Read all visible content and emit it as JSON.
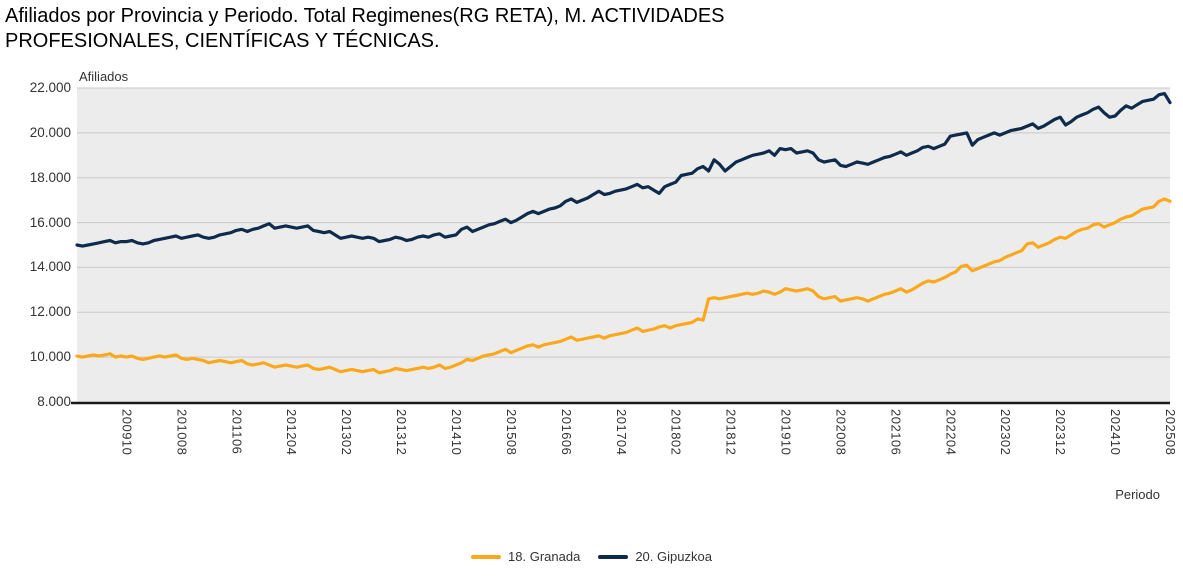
{
  "title": {
    "line1": "Afiliados por Provincia y Periodo. Total Regimenes(RG RETA), M. ACTIVIDADES",
    "line2": "PROFESIONALES, CIENTÍFICAS Y TÉCNICAS."
  },
  "chart_data": {
    "type": "line",
    "y_axis": {
      "title": "Afiliados",
      "min": 8000,
      "max": 22000,
      "tick_step": 2000,
      "tick_labels": [
        "22.000",
        "20.000",
        "18.000",
        "16.000",
        "14.000",
        "12.000",
        "10.000",
        "8.000"
      ]
    },
    "x_axis": {
      "title": "Periodo",
      "start_period": "200901",
      "end_period": "202508",
      "months_total": 200,
      "tick_month_indices": [
        9,
        19,
        29,
        39,
        49,
        59,
        69,
        79,
        89,
        99,
        109,
        119,
        129,
        139,
        149,
        159,
        169,
        179,
        189,
        199
      ],
      "tick_labels": [
        "200910",
        "201008",
        "201106",
        "201204",
        "201302",
        "201312",
        "201410",
        "201508",
        "201606",
        "201704",
        "201802",
        "201812",
        "201910",
        "202008",
        "202106",
        "202204",
        "202302",
        "202312",
        "202410",
        "202508"
      ]
    },
    "plot": {
      "background": "#ECECEC",
      "gridline_color": "#C9C9C9",
      "axis_line_color": "#1A1A1A"
    },
    "series": [
      {
        "name": "18. Granada",
        "color": "#FBA81C",
        "values": [
          10050,
          10000,
          10050,
          10100,
          10050,
          10100,
          10150,
          10000,
          10050,
          10000,
          10050,
          9950,
          9900,
          9950,
          10000,
          10050,
          10000,
          10050,
          10100,
          9950,
          9900,
          9950,
          9900,
          9850,
          9750,
          9800,
          9850,
          9800,
          9750,
          9800,
          9850,
          9700,
          9650,
          9700,
          9750,
          9650,
          9550,
          9600,
          9650,
          9600,
          9550,
          9600,
          9650,
          9500,
          9450,
          9500,
          9550,
          9450,
          9350,
          9400,
          9450,
          9400,
          9350,
          9400,
          9450,
          9300,
          9350,
          9400,
          9500,
          9450,
          9400,
          9450,
          9500,
          9550,
          9500,
          9550,
          9650,
          9500,
          9550,
          9650,
          9750,
          9900,
          9850,
          9950,
          10050,
          10100,
          10150,
          10250,
          10350,
          10200,
          10300,
          10400,
          10500,
          10550,
          10450,
          10550,
          10600,
          10650,
          10700,
          10800,
          10900,
          10750,
          10800,
          10850,
          10900,
          10950,
          10850,
          10950,
          11000,
          11050,
          11100,
          11200,
          11300,
          11150,
          11200,
          11250,
          11350,
          11400,
          11300,
          11400,
          11450,
          11500,
          11550,
          11700,
          11650,
          12600,
          12650,
          12600,
          12650,
          12700,
          12750,
          12800,
          12850,
          12800,
          12850,
          12950,
          12900,
          12800,
          12900,
          13050,
          13000,
          12950,
          13000,
          13050,
          12950,
          12700,
          12600,
          12650,
          12700,
          12500,
          12550,
          12600,
          12650,
          12600,
          12500,
          12600,
          12700,
          12800,
          12850,
          12950,
          13050,
          12900,
          13000,
          13150,
          13300,
          13400,
          13350,
          13450,
          13550,
          13700,
          13800,
          14050,
          14100,
          13850,
          13950,
          14050,
          14150,
          14250,
          14300,
          14450,
          14550,
          14650,
          14750,
          15050,
          15100,
          14900,
          15000,
          15100,
          15250,
          15350,
          15300,
          15450,
          15600,
          15700,
          15750,
          15900,
          15950,
          15800,
          15900,
          16000,
          16150,
          16250,
          16300,
          16450,
          16600,
          16650,
          16700,
          16950,
          17050,
          16950
        ]
      },
      {
        "name": "20. Gipuzkoa",
        "color": "#0E2B4C",
        "values": [
          15000,
          14950,
          15000,
          15050,
          15100,
          15150,
          15200,
          15100,
          15150,
          15150,
          15200,
          15100,
          15050,
          15100,
          15200,
          15250,
          15300,
          15350,
          15400,
          15300,
          15350,
          15400,
          15450,
          15350,
          15300,
          15350,
          15450,
          15500,
          15550,
          15650,
          15700,
          15600,
          15700,
          15750,
          15850,
          15950,
          15750,
          15800,
          15850,
          15800,
          15750,
          15800,
          15850,
          15650,
          15600,
          15550,
          15600,
          15450,
          15300,
          15350,
          15400,
          15350,
          15300,
          15350,
          15300,
          15150,
          15200,
          15250,
          15350,
          15300,
          15200,
          15250,
          15350,
          15400,
          15350,
          15450,
          15500,
          15350,
          15400,
          15450,
          15700,
          15800,
          15600,
          15700,
          15800,
          15900,
          15950,
          16050,
          16150,
          16000,
          16100,
          16250,
          16400,
          16500,
          16400,
          16500,
          16600,
          16650,
          16750,
          16950,
          17050,
          16900,
          17000,
          17100,
          17250,
          17400,
          17250,
          17300,
          17400,
          17450,
          17500,
          17600,
          17700,
          17550,
          17600,
          17450,
          17300,
          17600,
          17700,
          17800,
          18100,
          18150,
          18200,
          18400,
          18500,
          18300,
          18800,
          18600,
          18300,
          18500,
          18700,
          18800,
          18900,
          19000,
          19050,
          19100,
          19200,
          19000,
          19300,
          19250,
          19300,
          19100,
          19150,
          19200,
          19100,
          18800,
          18700,
          18750,
          18800,
          18550,
          18500,
          18600,
          18700,
          18650,
          18600,
          18700,
          18800,
          18900,
          18950,
          19050,
          19150,
          19000,
          19100,
          19200,
          19350,
          19400,
          19300,
          19400,
          19500,
          19850,
          19900,
          19950,
          20000,
          19450,
          19700,
          19800,
          19900,
          20000,
          19900,
          20000,
          20100,
          20150,
          20200,
          20300,
          20400,
          20200,
          20300,
          20450,
          20600,
          20700,
          20350,
          20500,
          20700,
          20800,
          20900,
          21050,
          21150,
          20900,
          20700,
          20750,
          21000,
          21200,
          21100,
          21250,
          21400,
          21450,
          21500,
          21700,
          21750,
          21350
        ]
      }
    ]
  },
  "legend": {
    "items": [
      {
        "label": "18. Granada",
        "color": "#FBA81C"
      },
      {
        "label": "20. Gipuzkoa",
        "color": "#0E2B4C"
      }
    ]
  }
}
